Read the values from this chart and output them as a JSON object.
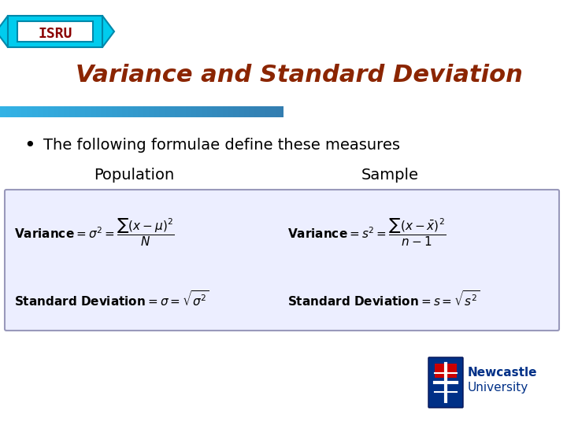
{
  "title": "Variance and Standard Deviation",
  "title_color": "#8B2500",
  "title_fontsize": 22,
  "bullet_text": "The following formulae define these measures",
  "bullet_fontsize": 14,
  "col1_header": "Population",
  "col2_header": "Sample",
  "header_fontsize": 14,
  "box_bg_color": "#ECEEFF",
  "box_edge_color": "#9999BB",
  "blue_bar_color": "#4477AA",
  "isru_bg": "#00CCEE",
  "isru_text_color": "#8B0000",
  "background_color": "#FFFFFF"
}
